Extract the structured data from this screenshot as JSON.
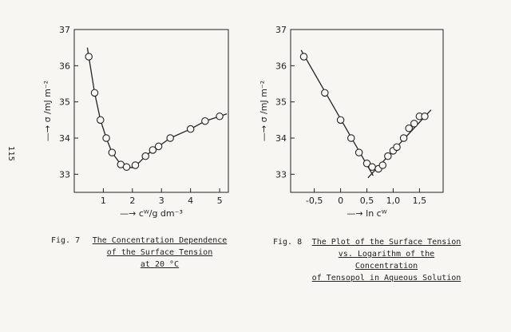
{
  "page_number": "115",
  "captions": [
    {
      "fig": "Fig. 7",
      "lines": [
        "The  Concentration  Dependence",
        "of the Surface Tension",
        "at 20 °C"
      ]
    },
    {
      "fig": "Fig. 8",
      "lines": [
        "The Plot of the Surface Tension",
        "vs. Logarithm  of  the Concentration",
        "of Tensopol in Aqueous Solution"
      ]
    }
  ],
  "chart_data": [
    {
      "type": "line",
      "title": "",
      "xlabel": "—→ cᵂ/g dm⁻³",
      "ylabel": "—→ σ /mJ m⁻²",
      "xlim": [
        0.0,
        5.3
      ],
      "ylim": [
        32.5,
        37.0
      ],
      "xticks": [
        1,
        2,
        3,
        4,
        5
      ],
      "yticks": [
        33,
        34,
        35,
        36,
        37
      ],
      "grid": false,
      "points": {
        "x": [
          0.5,
          0.7,
          0.9,
          1.1,
          1.3,
          1.6,
          1.8,
          2.1,
          2.45,
          2.7,
          2.9,
          3.3,
          4.0,
          4.5,
          5.0
        ],
        "y": [
          36.25,
          35.25,
          34.5,
          34.0,
          33.6,
          33.27,
          33.2,
          33.25,
          33.5,
          33.67,
          33.77,
          34.0,
          34.25,
          34.47,
          34.6
        ]
      },
      "curve": {
        "x": [
          0.45,
          0.5,
          0.7,
          0.9,
          1.1,
          1.3,
          1.6,
          1.8,
          2.05,
          2.45,
          2.7,
          2.9,
          3.3,
          4.0,
          4.5,
          5.0,
          5.25
        ],
        "y": [
          36.5,
          36.25,
          35.25,
          34.5,
          34.0,
          33.6,
          33.27,
          33.2,
          33.18,
          33.5,
          33.67,
          33.77,
          34.0,
          34.25,
          34.47,
          34.6,
          34.67
        ]
      }
    },
    {
      "type": "line",
      "title": "",
      "xlabel": "—→ ln cᵂ",
      "ylabel": "—→ σ /mJ m⁻²",
      "xlim": [
        -0.95,
        1.95
      ],
      "ylim": [
        32.5,
        37.0
      ],
      "xticks": [
        -0.5,
        0,
        0.5,
        1.0,
        1.5
      ],
      "xtick_labels": [
        "-0,5",
        "0",
        "0,5",
        "1,0",
        "1,5"
      ],
      "yticks": [
        33,
        34,
        35,
        36,
        37
      ],
      "grid": false,
      "points": {
        "x": [
          -0.7,
          -0.3,
          0.0,
          0.2,
          0.35,
          0.5,
          0.6,
          0.72,
          0.8,
          0.9,
          1.0,
          1.07,
          1.2,
          1.3,
          1.4,
          1.5,
          1.6
        ],
        "y": [
          36.25,
          35.25,
          34.5,
          34.0,
          33.6,
          33.3,
          33.2,
          33.15,
          33.25,
          33.5,
          33.65,
          33.75,
          34.0,
          34.27,
          34.4,
          34.6,
          34.6
        ]
      },
      "lines": [
        {
          "x": [
            -0.75,
            0.62
          ],
          "y": [
            36.43,
            32.96
          ]
        },
        {
          "x": [
            0.52,
            1.72
          ],
          "y": [
            32.9,
            34.78
          ]
        }
      ]
    }
  ]
}
